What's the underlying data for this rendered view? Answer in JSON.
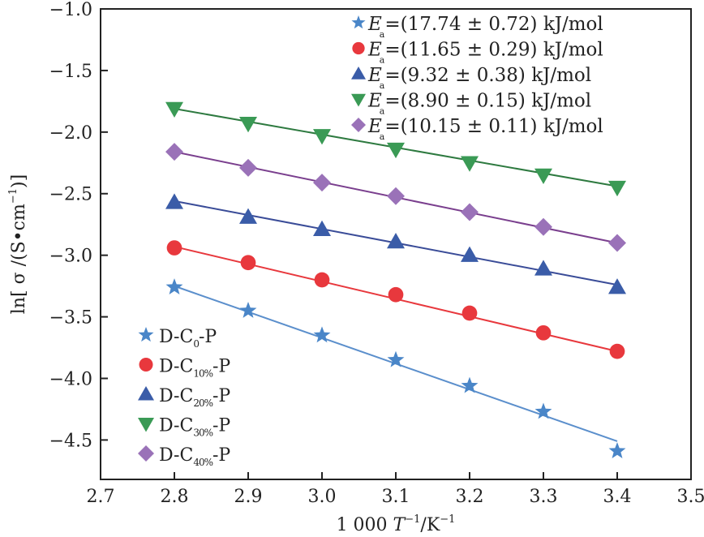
{
  "chart_data": {
    "type": "scatter",
    "title": "",
    "xlabel": "1 000 T⁻¹/K⁻¹",
    "xlabel_parts": {
      "prefix": "1 000 ",
      "var": "T",
      "sup1": "−1",
      "mid": "/K",
      "sup2": "−1"
    },
    "ylabel": "ln[ σ /(S·cm⁻¹)]",
    "ylabel_parts": {
      "prefix": "ln[ σ /(S•cm",
      "sup": "−1",
      "suffix": ")]"
    },
    "xlim": [
      2.7,
      3.5
    ],
    "ylim": [
      -4.82,
      -1.0
    ],
    "xticks": [
      2.7,
      2.8,
      2.9,
      3.0,
      3.1,
      3.2,
      3.3,
      3.4,
      3.5
    ],
    "xtick_labels": [
      "2.7",
      "2.8",
      "2.9",
      "3.0",
      "3.1",
      "3.2",
      "3.3",
      "3.4",
      "3.5"
    ],
    "yticks": [
      -1.0,
      -1.5,
      -2.0,
      -2.5,
      -3.0,
      -3.5,
      -4.0,
      -4.5
    ],
    "ytick_labels": [
      "−1.0",
      "−1.5",
      "−2.0",
      "−2.5",
      "−3.0",
      "−3.5",
      "−4.0",
      "−4.5"
    ],
    "grid": false,
    "x": [
      2.8,
      2.9,
      3.0,
      3.1,
      3.2,
      3.3,
      3.4
    ],
    "series": [
      {
        "name": "D-C0-P",
        "label_main": "D-C",
        "label_sub": "0",
        "label_end": "-P",
        "marker": "star",
        "color": "#4a86c8",
        "values": [
          -3.26,
          -3.45,
          -3.65,
          -3.85,
          -4.06,
          -4.27,
          -4.59
        ],
        "fit": [
          -3.25,
          -4.51
        ],
        "ea": "=(17.74 ± 0.72) kJ/mol"
      },
      {
        "name": "D-C10%-P",
        "label_main": "D-C",
        "label_sub": "10%",
        "label_end": "-P",
        "marker": "circle",
        "color": "#e8383d",
        "values": [
          -2.94,
          -3.06,
          -3.2,
          -3.32,
          -3.47,
          -3.63,
          -3.78
        ],
        "fit": [
          -2.93,
          -3.78
        ],
        "ea": "=(11.65 ± 0.29) kJ/mol"
      },
      {
        "name": "D-C20%-P",
        "label_main": "D-C",
        "label_sub": "20%",
        "label_end": "-P",
        "marker": "triangle-up",
        "color": "#3a5ca8",
        "values": [
          -2.57,
          -2.69,
          -2.79,
          -2.89,
          -3.0,
          -3.11,
          -3.26
        ],
        "fit": [
          -2.56,
          -3.24
        ],
        "ea": "=(9.32 ± 0.38) kJ/mol"
      },
      {
        "name": "D-C30%-P",
        "label_main": "D-C",
        "label_sub": "30%",
        "label_end": "-P",
        "marker": "triangle-down",
        "color": "#3a9a55",
        "values": [
          -1.81,
          -1.93,
          -2.03,
          -2.14,
          -2.25,
          -2.35,
          -2.45
        ],
        "fit": [
          -1.81,
          -2.44
        ],
        "ea": "=(8.90 ± 0.15) kJ/mol"
      },
      {
        "name": "D-C40%-P",
        "label_main": "D-C",
        "label_sub": "40%",
        "label_end": "-P",
        "marker": "diamond",
        "color": "#9a72b8",
        "values": [
          -2.16,
          -2.29,
          -2.41,
          -2.52,
          -2.65,
          -2.77,
          -2.9
        ],
        "fit": [
          -2.16,
          -2.9
        ],
        "ea": "=(10.15 ± 0.11) kJ/mol"
      }
    ],
    "line_colors": [
      "#5b8fcc",
      "#e8383d",
      "#3a4c98",
      "#2e7a40",
      "#7a3f8e"
    ],
    "legend_placement": "lower-left",
    "ea_legend_placement": "upper-right",
    "ea_symbol": "E",
    "ea_subscript": "a"
  }
}
